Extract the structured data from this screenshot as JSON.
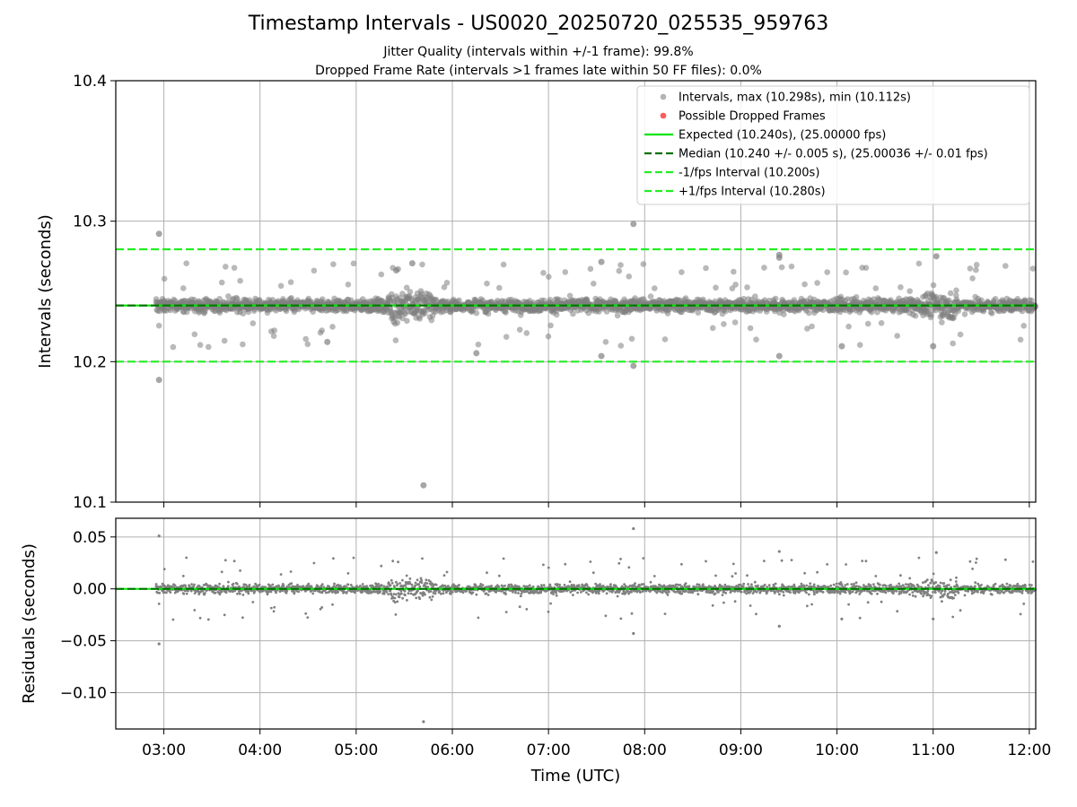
{
  "title": "Timestamp Intervals - US0020_20250720_025535_959763",
  "subtitle_lines": [
    "Jitter Quality (intervals within +/-1 frame): 99.8%",
    "Dropped Frame Rate (intervals >1 frames late within 50 FF files): 0.0%"
  ],
  "colors": {
    "points": "#808080",
    "dropped": "#ff5a5a",
    "expected": "#00e600",
    "median": "#007000",
    "interval_lines": "#22ee22",
    "grid": "#b0b0b0"
  },
  "chart_data": [
    {
      "type": "scatter",
      "ylabel": "Intervals (seconds)",
      "xlabel": "",
      "xlim": [
        "02:30",
        "12:04"
      ],
      "ylim": [
        10.1,
        10.4
      ],
      "yticks": [
        "10.1",
        "10.2",
        "10.3",
        "10.4"
      ],
      "grid": true,
      "legend_position": "top-right",
      "legend": [
        {
          "label": "Intervals, max (10.298s), min (10.112s)",
          "style": "marker-gray"
        },
        {
          "label": "Possible Dropped Frames",
          "style": "marker-red"
        },
        {
          "label": "Expected (10.240s), (25.00000 fps)",
          "style": "solid-green"
        },
        {
          "label": "Median (10.240 +/- 0.005 s), (25.00036 +/- 0.01 fps)",
          "style": "dashed-darkgreen"
        },
        {
          "label": "-1/fps Interval (10.200s)",
          "style": "dashed-green"
        },
        {
          "label": "+1/fps Interval (10.280s)",
          "style": "dashed-green"
        }
      ],
      "hlines": {
        "expected": 10.24,
        "median": 10.24,
        "minus_interval": 10.2,
        "plus_interval": 10.28
      },
      "typical_band": [
        10.225,
        10.255
      ],
      "outliers": [
        {
          "x": "02:57",
          "y": 10.291
        },
        {
          "x": "02:57",
          "y": 10.187
        },
        {
          "x": "05:42",
          "y": 10.112
        },
        {
          "x": "07:53",
          "y": 10.298
        },
        {
          "x": "07:53",
          "y": 10.197
        },
        {
          "x": "09:24",
          "y": 10.274
        },
        {
          "x": "09:24",
          "y": 10.276
        },
        {
          "x": "09:24",
          "y": 10.204
        },
        {
          "x": "11:02",
          "y": 10.275
        },
        {
          "x": "10:03",
          "y": 10.211
        },
        {
          "x": "11:00",
          "y": 10.211
        },
        {
          "x": "05:25",
          "y": 10.265
        },
        {
          "x": "05:35",
          "y": 10.27
        },
        {
          "x": "07:33",
          "y": 10.271
        },
        {
          "x": "07:33",
          "y": 10.204
        },
        {
          "x": "06:15",
          "y": 10.206
        },
        {
          "x": "04:42",
          "y": 10.214
        }
      ]
    },
    {
      "type": "scatter",
      "ylabel": "Residuals (seconds)",
      "xlabel": "Time (UTC)",
      "xlim": [
        "02:30",
        "12:04"
      ],
      "ylim": [
        -0.135,
        0.068
      ],
      "yticks": [
        "−0.10",
        "−0.05",
        "0.00",
        "0.05"
      ],
      "xticks": [
        "03:00",
        "04:00",
        "05:00",
        "06:00",
        "07:00",
        "08:00",
        "09:00",
        "10:00",
        "11:00",
        "12:00"
      ],
      "grid": true,
      "hlines": {
        "zero": 0.0
      },
      "outliers": [
        {
          "x": "02:57",
          "y": 0.051
        },
        {
          "x": "02:57",
          "y": -0.053
        },
        {
          "x": "05:42",
          "y": -0.128
        },
        {
          "x": "07:53",
          "y": 0.058
        },
        {
          "x": "07:53",
          "y": -0.043
        },
        {
          "x": "09:24",
          "y": 0.036
        },
        {
          "x": "09:24",
          "y": -0.036
        },
        {
          "x": "11:02",
          "y": 0.035
        },
        {
          "x": "10:03",
          "y": -0.029
        },
        {
          "x": "11:00",
          "y": -0.029
        }
      ]
    }
  ]
}
